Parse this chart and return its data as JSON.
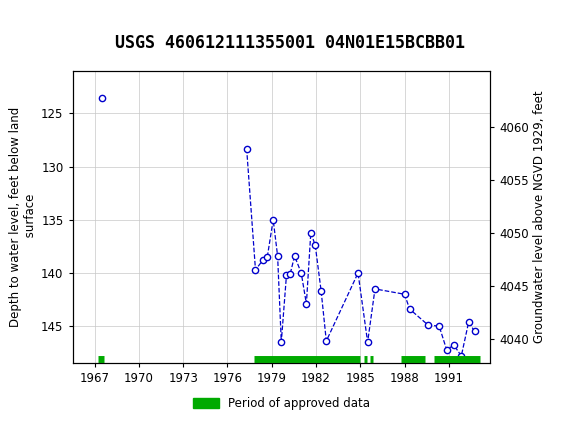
{
  "title": "USGS 460612111355001 04N01E15BCBB01",
  "ylabel_left": "Depth to water level, feet below land\n surface",
  "ylabel_right": "Groundwater level above NGVD 1929, feet",
  "segments": [
    {
      "x": [
        1967.5
      ],
      "y": [
        123.5
      ]
    },
    {
      "x": [
        1977.3,
        1977.9,
        1978.4,
        1978.7,
        1979.1,
        1979.4,
        1979.65,
        1980.0,
        1980.25,
        1980.55,
        1981.0,
        1981.35,
        1981.65,
        1981.95,
        1982.35,
        1982.7,
        1984.85,
        1985.5,
        1986.0,
        1988.0,
        1988.35,
        1989.6,
        1990.35,
        1990.85,
        1991.35,
        1991.85,
        1992.35,
        1992.75
      ],
      "y": [
        128.3,
        139.7,
        138.8,
        138.5,
        135.0,
        138.4,
        146.5,
        140.2,
        140.1,
        138.4,
        140.0,
        142.9,
        136.2,
        137.4,
        141.7,
        146.4,
        140.0,
        146.5,
        141.5,
        142.0,
        143.4,
        144.9,
        145.0,
        147.2,
        146.8,
        147.8,
        144.6,
        145.5
      ]
    }
  ],
  "ylim_left": [
    148.5,
    121.0
  ],
  "ylim_right": [
    4037.75,
    4065.25
  ],
  "xlim": [
    1965.5,
    1993.8
  ],
  "xticks": [
    1967,
    1970,
    1973,
    1976,
    1979,
    1982,
    1985,
    1988,
    1991
  ],
  "yticks_left": [
    125,
    130,
    135,
    140,
    145
  ],
  "yticks_right": [
    4040,
    4045,
    4050,
    4055,
    4060
  ],
  "line_color": "#0000cc",
  "marker_color": "#0000cc",
  "marker_face": "white",
  "grid_color": "#c8c8c8",
  "bg_color": "#ffffff",
  "header_color": "#006633",
  "approved_segments": [
    [
      1967.2,
      1967.65
    ],
    [
      1977.8,
      1984.95
    ],
    [
      1985.25,
      1985.45
    ],
    [
      1985.65,
      1985.85
    ],
    [
      1987.75,
      1989.4
    ],
    [
      1990.0,
      1993.1
    ]
  ],
  "approved_color": "#00aa00",
  "approved_y": 148.1,
  "legend_label": "Period of approved data",
  "title_fontsize": 12,
  "axis_label_fontsize": 8.5,
  "tick_fontsize": 8.5
}
